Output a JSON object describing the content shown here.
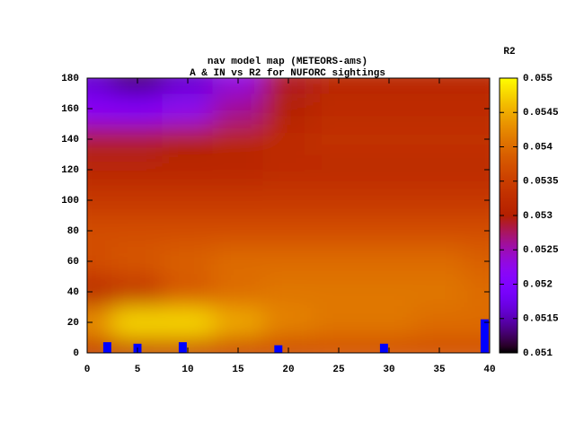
{
  "chart_data": {
    "type": "heatmap",
    "title": "nav model map (METEORS-ams)",
    "subtitle": "A & IN vs R2 for NUFORC sightings",
    "colorbar_label": "R2",
    "x": [
      0,
      5,
      10,
      15,
      20,
      25,
      30,
      35,
      40
    ],
    "y": [
      0,
      20,
      40,
      60,
      80,
      100,
      120,
      140,
      160,
      180
    ],
    "z": [
      [
        0.0533,
        0.0533,
        0.0534,
        0.0535,
        0.0536,
        0.0537,
        0.0537,
        0.0537,
        0.0537
      ],
      [
        0.0543,
        0.0548,
        0.0548,
        0.0545,
        0.0542,
        0.0541,
        0.0541,
        0.054,
        0.054
      ],
      [
        0.0531,
        0.0533,
        0.0538,
        0.054,
        0.0541,
        0.0541,
        0.0541,
        0.0541,
        0.054
      ],
      [
        0.0537,
        0.0538,
        0.0539,
        0.054,
        0.054,
        0.054,
        0.054,
        0.054,
        0.0539
      ],
      [
        0.0537,
        0.0537,
        0.0537,
        0.0537,
        0.0537,
        0.0537,
        0.0537,
        0.0537,
        0.0537
      ],
      [
        0.0534,
        0.0534,
        0.0534,
        0.0534,
        0.0534,
        0.0534,
        0.0534,
        0.0534,
        0.0534
      ],
      [
        0.0531,
        0.0531,
        0.0531,
        0.0531,
        0.0532,
        0.0532,
        0.0532,
        0.0532,
        0.0532
      ],
      [
        0.0529,
        0.0529,
        0.053,
        0.0531,
        0.0532,
        0.0533,
        0.0533,
        0.0533,
        0.0533
      ],
      [
        0.0521,
        0.052,
        0.0522,
        0.0526,
        0.053,
        0.0532,
        0.0532,
        0.0532,
        0.0532
      ],
      [
        0.0516,
        0.0513,
        0.0516,
        0.0523,
        0.0529,
        0.0531,
        0.0531,
        0.0531,
        0.0531
      ]
    ],
    "xlim": [
      0,
      40
    ],
    "ylim": [
      0,
      180
    ],
    "xticks": [
      0,
      5,
      10,
      15,
      20,
      25,
      30,
      35,
      40
    ],
    "yticks": [
      0,
      20,
      40,
      60,
      80,
      100,
      120,
      140,
      160,
      180
    ],
    "cblim": [
      0.051,
      0.055
    ],
    "cbticks": [
      0.051,
      0.0515,
      0.052,
      0.0525,
      0.053,
      0.0535,
      0.054,
      0.0545,
      0.055
    ],
    "overlay": {
      "type": "bar",
      "color": "#0000ff",
      "x": [
        2,
        5,
        9.5,
        19,
        29.5,
        39.5
      ],
      "values": [
        7,
        6,
        7,
        5,
        6,
        22
      ]
    }
  }
}
